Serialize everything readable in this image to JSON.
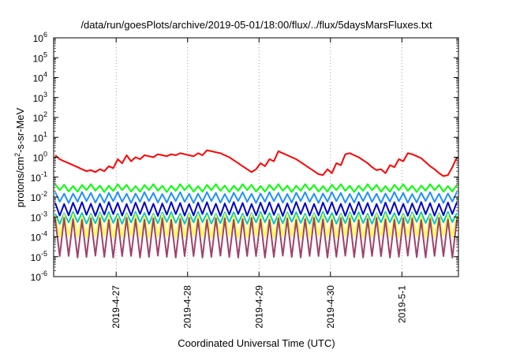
{
  "chart_data": {
    "type": "line",
    "title": "/data/run/goesPlots/archive/2019-05-01/18:00/flux/../flux/5daysMarsFluxes.txt",
    "xlabel": "Coordinated Universal Time (UTC)",
    "ylabel": {
      "base": "protons/cm",
      "sup": "2",
      "rest": "-s-sr-MeV"
    },
    "yscale": "log",
    "ylim_exp": [
      -6,
      6
    ],
    "y_tick_exponents": [
      -6,
      -5,
      -4,
      -3,
      -2,
      -1,
      0,
      1,
      2,
      3,
      4,
      5,
      6
    ],
    "x_start": "2019-04-26 03:00",
    "x_end": "2019-05-01 19:00",
    "x_ticks": [
      {
        "date": "2019-04-27 00:00",
        "label": "2019-4-27"
      },
      {
        "date": "2019-04-28 00:00",
        "label": "2019-4-28"
      },
      {
        "date": "2019-04-29 00:00",
        "label": "2019-4-29"
      },
      {
        "date": "2019-04-30 00:00",
        "label": "2019-4-30"
      },
      {
        "date": "2019-05-01 00:00",
        "label": "2019-5-1"
      }
    ],
    "grid": true,
    "series": [
      {
        "color": "#ff0000",
        "values_log10": [
          0.1,
          -0.1,
          -0.2,
          -0.3,
          -0.4,
          -0.5,
          -0.6,
          -0.7,
          -0.65,
          -0.75,
          -0.6,
          -0.7,
          -0.45,
          -0.55,
          -0.1,
          -0.3,
          0.1,
          -0.2,
          0.0,
          -0.1,
          0.1,
          0.05,
          0.0,
          0.15,
          0.1,
          0.05,
          0.15,
          0.1,
          0.2,
          0.15,
          0.1,
          0.05,
          0.2,
          0.1,
          0.35,
          0.3,
          0.25,
          0.2,
          0.1,
          0.0,
          -0.15,
          -0.3,
          -0.45,
          -0.6,
          -0.75,
          -0.6,
          -0.3,
          -0.45,
          -0.1,
          -0.2,
          0.3,
          0.2,
          0.1,
          0.0,
          -0.1,
          -0.25,
          -0.4,
          -0.55,
          -0.7,
          -0.85,
          -0.9,
          -0.6,
          -0.8,
          -0.3,
          -0.4,
          0.15,
          0.2,
          0.1,
          0.0,
          -0.15,
          -0.3,
          -0.5,
          -0.65,
          -0.6,
          -0.8,
          -0.4,
          -0.5,
          -0.1,
          -0.2,
          0.2,
          0.15,
          0.05,
          -0.05,
          -0.25,
          -0.45,
          -0.6,
          -0.8,
          -0.95,
          -0.9,
          -0.5,
          0.0
        ]
      },
      {
        "color": "#00ff00",
        "base_log10": -1.4,
        "drop": 0.3,
        "period": 2
      },
      {
        "color": "#1e90ff",
        "base_log10": -1.8,
        "drop": 0.45,
        "period": 2
      },
      {
        "color": "#0000c8",
        "base_log10": -2.3,
        "drop": 0.6,
        "period": 2
      },
      {
        "color": "#00c8c8",
        "base_log10": -2.8,
        "drop": 0.5,
        "period": 2
      },
      {
        "color": "#ffff40",
        "base_log10": -2.9,
        "drop": 1.1,
        "period": 2
      },
      {
        "color": "#a0426e",
        "base_log10": -3.1,
        "drop": 1.9,
        "period": 2
      }
    ]
  }
}
